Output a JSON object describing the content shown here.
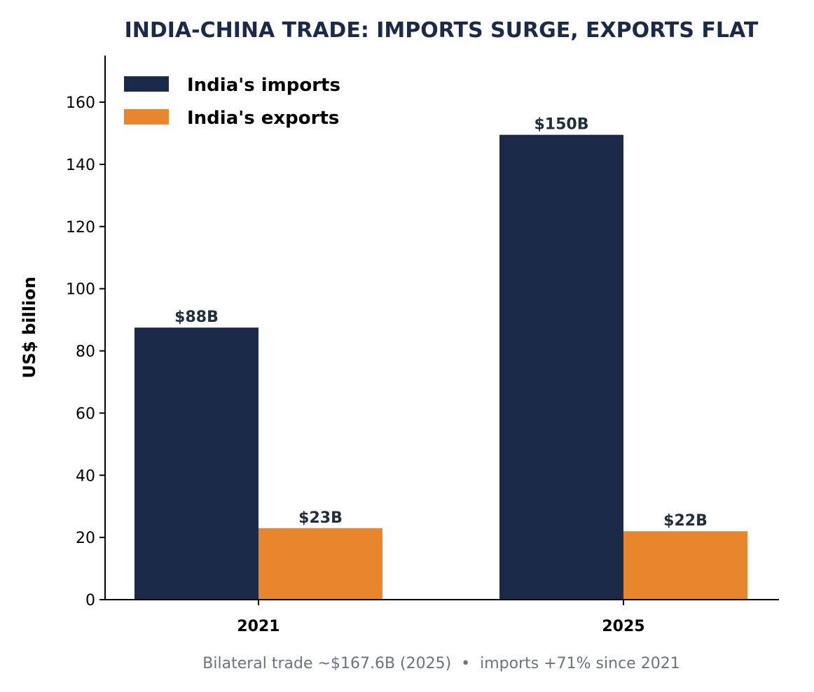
{
  "chart_data": {
    "type": "bar",
    "title": "INDIA-CHINA TRADE: IMPORTS SURGE, EXPORTS FLAT",
    "xlabel": "",
    "ylabel": "US$ billion",
    "categories": [
      "2021",
      "2025"
    ],
    "series": [
      {
        "name": "India's imports",
        "values": [
          87.5,
          149.5
        ],
        "labels": [
          "$88B",
          "$150B"
        ],
        "color": "#1c2a4a"
      },
      {
        "name": "India's exports",
        "values": [
          23.0,
          22.0
        ],
        "labels": [
          "$23B",
          "$22B"
        ],
        "color": "#e8852d"
      }
    ],
    "ylim": [
      0,
      175
    ],
    "yticks": [
      0,
      20,
      40,
      60,
      80,
      100,
      120,
      140,
      160
    ],
    "grid": false,
    "legend_position": "top-left",
    "footnote": "Bilateral trade ~$167.6B (2025)  •  imports +71% since 2021",
    "colors": {
      "title": "#1c2a4a",
      "data_label": "#1f2d3d",
      "footnote": "#6b7280",
      "axis": "#000000"
    }
  }
}
